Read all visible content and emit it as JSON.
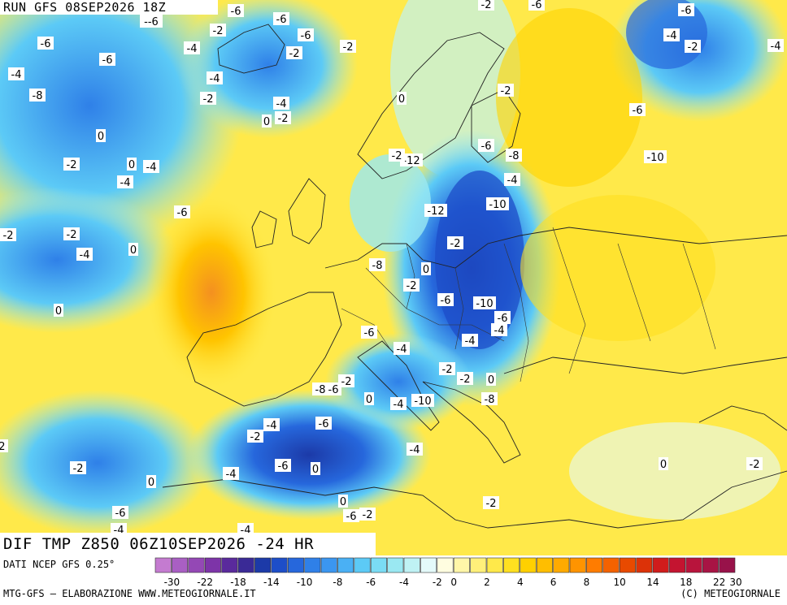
{
  "header": {
    "run_title": "RUN GFS 08SEP2026 18Z"
  },
  "map": {
    "field_title": "DIF TMP Z850 06Z10SEP2026 -24 HR",
    "contour_labels": [
      "-6",
      "--6",
      "-6",
      "-2",
      "-6",
      "-6",
      "-4",
      "-2",
      "-2",
      "-4",
      "-6",
      "-8",
      "-4",
      "-2",
      "-4",
      "-2",
      "0",
      "0",
      "-4",
      "-2",
      "0",
      "-6",
      "-2",
      "-4",
      "0",
      "-4",
      "-2",
      "-2",
      "-6",
      "-6",
      "-4",
      "-4",
      "-2",
      "0",
      "-2",
      "-6",
      "-10",
      "-6",
      "-12",
      "-2",
      "-8",
      "-4",
      "-10",
      "-12",
      "-2",
      "-8",
      "0",
      "-2",
      "-6",
      "-10",
      "-6",
      "-4",
      "-4",
      "-6",
      "-4",
      "-2",
      "-2",
      "0",
      "-2",
      "-6",
      "-8",
      "0",
      "-4",
      "-10",
      "-8",
      "-4",
      "-2",
      "-6",
      "-4",
      "-2",
      "-6",
      "0",
      "-4",
      "0",
      "0",
      "-2",
      "-6",
      "-2",
      "-6",
      "-4",
      "-4",
      "0",
      "0",
      "-2",
      "-2",
      "0",
      "-4",
      "-2",
      "-6",
      "-6",
      "-4",
      "-2",
      "-4"
    ]
  },
  "legend": {
    "source": "DATI NCEP GFS 0.25°",
    "tick_labels": [
      "-30",
      "-22",
      "-18",
      "-14",
      "-10",
      "-8",
      "-6",
      "-4",
      "-2",
      "0",
      "2",
      "4",
      "6",
      "8",
      "10",
      "14",
      "18",
      "22",
      "30"
    ],
    "colors": [
      "#c47bd0",
      "#a95fc3",
      "#9448b5",
      "#7d34a8",
      "#5a2a9c",
      "#3a2a96",
      "#1c3aa8",
      "#1d4ec8",
      "#2667dc",
      "#2f80e8",
      "#3b96f0",
      "#4ab0f4",
      "#5ccaf6",
      "#7adcf4",
      "#9ae8f2",
      "#bff2f4",
      "#e4fafa",
      "#fffde0",
      "#fff6a8",
      "#fff07a",
      "#ffe94a",
      "#ffe020",
      "#ffd000",
      "#ffbe00",
      "#ffaa00",
      "#ff9400",
      "#ff7c00",
      "#f46200",
      "#e84a00",
      "#dc3208",
      "#d01c1c",
      "#c41430",
      "#b8143c",
      "#a81444",
      "#98124a"
    ],
    "ramp_positions": [
      0,
      1,
      2,
      3,
      4,
      5,
      6,
      7,
      8,
      9,
      10,
      11,
      12,
      13,
      14,
      15,
      16,
      17,
      18,
      19,
      20,
      21,
      22,
      23,
      24,
      25,
      26,
      27,
      28,
      29,
      30,
      31,
      32,
      33,
      34
    ],
    "tick_index": [
      1,
      3,
      5,
      7,
      9,
      11,
      13,
      15,
      17,
      18,
      20,
      22,
      24,
      26,
      28,
      30,
      32,
      34,
      35
    ]
  },
  "footer": {
    "credits": "MTG-GFS – ELABORAZIONE WWW.METEOGIORNALE.IT",
    "copyright": "(C) METEOGIORNALE"
  }
}
